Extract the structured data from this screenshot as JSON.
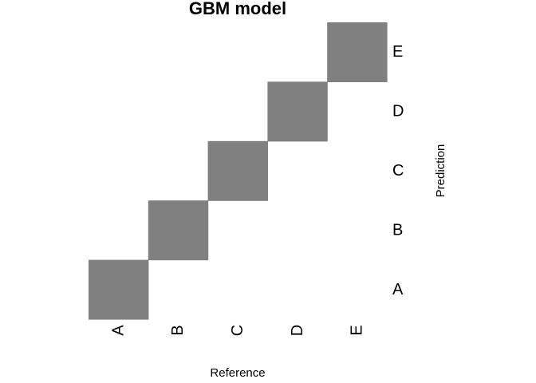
{
  "chart_data": {
    "type": "heatmap",
    "title": "GBM model",
    "xlabel": "Reference",
    "ylabel": "Prediction",
    "x_categories": [
      "A",
      "B",
      "C",
      "D",
      "E"
    ],
    "y_categories": [
      "A",
      "B",
      "C",
      "D",
      "E"
    ],
    "cells": [
      {
        "reference": "A",
        "prediction": "A",
        "filled": true
      },
      {
        "reference": "B",
        "prediction": "B",
        "filled": true
      },
      {
        "reference": "C",
        "prediction": "C",
        "filled": true
      },
      {
        "reference": "D",
        "prediction": "D",
        "filled": true
      },
      {
        "reference": "E",
        "prediction": "E",
        "filled": true
      }
    ],
    "cell_color": "#808080",
    "background_color": "#ffffff",
    "grid": false,
    "legend": "none"
  }
}
